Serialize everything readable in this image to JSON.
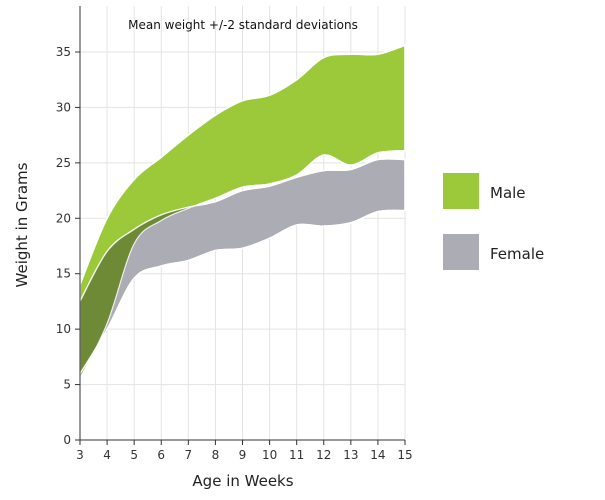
{
  "chart_data": {
    "type": "area",
    "title": "Mean weight +/-2 standard deviations",
    "xlabel": "Age in Weeks",
    "ylabel": "Weight in Grams",
    "xlim": [
      3,
      15
    ],
    "ylim": [
      0,
      37
    ],
    "x_ticks": [
      3,
      4,
      5,
      6,
      7,
      8,
      9,
      10,
      11,
      12,
      13,
      14,
      15
    ],
    "y_ticks": [
      0,
      5,
      10,
      15,
      20,
      25,
      30,
      35
    ],
    "grid": true,
    "legend_position": "right",
    "x": [
      3,
      4,
      5,
      6,
      7,
      8,
      9,
      10,
      11,
      12,
      13,
      14,
      15
    ],
    "series": [
      {
        "name": "Male",
        "color": "#9bc93a",
        "upper": [
          14.0,
          20.0,
          23.5,
          25.5,
          27.5,
          29.3,
          30.6,
          31.1,
          32.5,
          34.5,
          34.8,
          34.8,
          35.6
        ],
        "lower": [
          5.5,
          10.5,
          17.7,
          19.8,
          20.9,
          21.8,
          22.8,
          23.1,
          23.9,
          25.7,
          24.8,
          25.9,
          26.1
        ]
      },
      {
        "name": "Female",
        "color": "#abacb4",
        "upper": [
          12.5,
          17.0,
          19.0,
          20.3,
          21.0,
          21.5,
          22.5,
          22.9,
          23.7,
          24.3,
          24.4,
          25.3,
          25.3
        ],
        "lower": [
          6.0,
          10.0,
          14.6,
          15.7,
          16.2,
          17.1,
          17.3,
          18.2,
          19.4,
          19.3,
          19.6,
          20.6,
          20.7
        ]
      }
    ],
    "overlap_color": "#6e8a36"
  }
}
